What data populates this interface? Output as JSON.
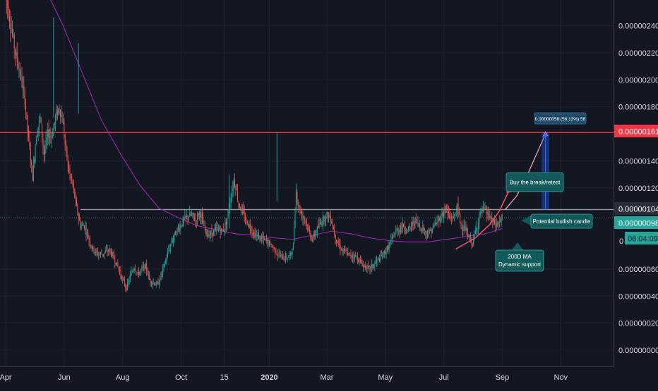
{
  "chart_data": {
    "type": "candlestick",
    "y_axis": {
      "ticks": [
        "0.00000240",
        "0.00000220",
        "0.00000200",
        "0.00000180",
        "0.00000140",
        "0.00000120",
        "0.00000060",
        "0.00000040",
        "0.00000020",
        "0.00000000"
      ],
      "tick_values": [
        2.4,
        2.2,
        2.0,
        1.8,
        1.4,
        1.2,
        0.6,
        0.4,
        0.2,
        0.0
      ],
      "unit_scale": "1e-6",
      "range": [
        -0.05,
        2.57
      ]
    },
    "x_axis": {
      "ticks": [
        "Apr",
        "Jun",
        "Aug",
        "Oct",
        "15",
        "2020",
        "Mar",
        "May",
        "Jul",
        "Sep",
        "Nov"
      ],
      "tick_positions": [
        0,
        61,
        122,
        183,
        228,
        275,
        335,
        396,
        457,
        518,
        579
      ]
    },
    "horizontal_levels": [
      {
        "value": 1.61,
        "label": "0.00000161",
        "color": "#f23645"
      },
      {
        "value": 1.04,
        "label": "0.00000104",
        "color": "#b2b5be"
      },
      {
        "value": 0.98,
        "label": "0.00000098",
        "color": "#26a69a"
      }
    ],
    "countdown_label": "06:04:09",
    "partial_axis_label": "0",
    "annotations": {
      "measure": "0.00000058 (56.13%) 58",
      "buy": "Buy the break/retest",
      "bullish": "Potential bullish candle",
      "ma_line1": "200D MA",
      "ma_line2": "Dynamic support"
    },
    "price_path": [
      [
        0,
        2.62
      ],
      [
        3,
        2.5
      ],
      [
        6,
        2.38
      ],
      [
        10,
        2.2
      ],
      [
        15,
        2.05
      ],
      [
        20,
        1.85
      ],
      [
        24,
        1.55
      ],
      [
        28,
        1.28
      ],
      [
        32,
        1.6
      ],
      [
        36,
        1.72
      ],
      [
        40,
        1.45
      ],
      [
        44,
        1.6
      ],
      [
        48,
        1.58
      ],
      [
        52,
        1.72
      ],
      [
        56,
        1.8
      ],
      [
        60,
        1.67
      ],
      [
        62,
        1.52
      ],
      [
        66,
        1.32
      ],
      [
        70,
        1.22
      ],
      [
        74,
        1.05
      ],
      [
        78,
        0.92
      ],
      [
        82,
        0.92
      ],
      [
        86,
        0.84
      ],
      [
        90,
        0.76
      ],
      [
        94,
        0.72
      ],
      [
        98,
        0.71
      ],
      [
        103,
        0.72
      ],
      [
        108,
        0.74
      ],
      [
        113,
        0.68
      ],
      [
        118,
        0.6
      ],
      [
        122,
        0.52
      ],
      [
        126,
        0.46
      ],
      [
        130,
        0.55
      ],
      [
        134,
        0.62
      ],
      [
        138,
        0.56
      ],
      [
        142,
        0.6
      ],
      [
        146,
        0.62
      ],
      [
        150,
        0.52
      ],
      [
        154,
        0.5
      ],
      [
        158,
        0.48
      ],
      [
        162,
        0.55
      ],
      [
        166,
        0.64
      ],
      [
        170,
        0.74
      ],
      [
        174,
        0.82
      ],
      [
        178,
        0.88
      ],
      [
        182,
        0.92
      ],
      [
        186,
        0.96
      ],
      [
        190,
        0.99
      ],
      [
        194,
        1.0
      ],
      [
        198,
        0.96
      ],
      [
        202,
        1.02
      ],
      [
        204,
        0.99
      ],
      [
        206,
        0.92
      ],
      [
        210,
        0.86
      ],
      [
        214,
        0.86
      ],
      [
        218,
        0.88
      ],
      [
        222,
        0.9
      ],
      [
        226,
        0.88
      ],
      [
        230,
        0.94
      ],
      [
        234,
        1.1
      ],
      [
        238,
        1.25
      ],
      [
        240,
        1.22
      ],
      [
        243,
        1.08
      ],
      [
        247,
        1.02
      ],
      [
        251,
        0.95
      ],
      [
        255,
        0.92
      ],
      [
        259,
        0.86
      ],
      [
        263,
        0.84
      ],
      [
        268,
        0.82
      ],
      [
        273,
        0.8
      ],
      [
        279,
        0.76
      ],
      [
        285,
        0.7
      ],
      [
        291,
        0.68
      ],
      [
        297,
        0.7
      ],
      [
        300,
        0.78
      ],
      [
        302,
        1.06
      ],
      [
        303,
        1.18
      ],
      [
        305,
        1.08
      ],
      [
        309,
        1.0
      ],
      [
        313,
        0.96
      ],
      [
        316,
        0.88
      ],
      [
        320,
        0.82
      ],
      [
        324,
        0.88
      ],
      [
        328,
        0.94
      ],
      [
        332,
        0.98
      ],
      [
        336,
        1.0
      ],
      [
        340,
        0.96
      ],
      [
        343,
        0.86
      ],
      [
        347,
        0.78
      ],
      [
        351,
        0.74
      ],
      [
        355,
        0.72
      ],
      [
        359,
        0.7
      ],
      [
        363,
        0.7
      ],
      [
        367,
        0.68
      ],
      [
        371,
        0.64
      ],
      [
        375,
        0.62
      ],
      [
        379,
        0.6
      ],
      [
        383,
        0.62
      ],
      [
        387,
        0.66
      ],
      [
        391,
        0.68
      ],
      [
        395,
        0.72
      ],
      [
        399,
        0.76
      ],
      [
        403,
        0.82
      ],
      [
        407,
        0.88
      ],
      [
        411,
        0.9
      ],
      [
        415,
        0.92
      ],
      [
        419,
        0.88
      ],
      [
        423,
        0.92
      ],
      [
        427,
        0.96
      ],
      [
        431,
        0.92
      ],
      [
        435,
        0.9
      ],
      [
        439,
        0.86
      ],
      [
        443,
        0.88
      ],
      [
        447,
        0.92
      ],
      [
        451,
        0.96
      ],
      [
        455,
        1.0
      ],
      [
        459,
        1.05
      ],
      [
        463,
        0.98
      ],
      [
        467,
        0.98
      ],
      [
        471,
        1.06
      ],
      [
        475,
        0.92
      ],
      [
        479,
        0.9
      ],
      [
        483,
        0.82
      ],
      [
        487,
        0.8
      ],
      [
        491,
        0.9
      ],
      [
        495,
        1.02
      ],
      [
        499,
        1.04
      ],
      [
        503,
        1.0
      ],
      [
        507,
        0.96
      ],
      [
        511,
        0.92
      ],
      [
        515,
        0.95
      ],
      [
        518,
        0.98
      ]
    ],
    "ma_path": [
      [
        45,
        2.62
      ],
      [
        60,
        2.4
      ],
      [
        80,
        2.05
      ],
      [
        100,
        1.7
      ],
      [
        120,
        1.45
      ],
      [
        140,
        1.22
      ],
      [
        160,
        1.05
      ],
      [
        180,
        0.98
      ],
      [
        200,
        0.92
      ],
      [
        220,
        0.89
      ],
      [
        240,
        0.86
      ],
      [
        260,
        0.85
      ],
      [
        280,
        0.83
      ],
      [
        300,
        0.82
      ],
      [
        320,
        0.85
      ],
      [
        340,
        0.88
      ],
      [
        360,
        0.86
      ],
      [
        380,
        0.83
      ],
      [
        400,
        0.81
      ],
      [
        420,
        0.8
      ],
      [
        440,
        0.8
      ],
      [
        460,
        0.82
      ],
      [
        480,
        0.84
      ],
      [
        500,
        0.86
      ],
      [
        518,
        0.9
      ]
    ],
    "projection_path": [
      [
        470,
        0.75
      ],
      [
        490,
        0.83
      ],
      [
        505,
        0.93
      ],
      [
        515,
        1.03
      ],
      [
        521,
        1.12
      ],
      [
        525,
        1.18
      ]
    ],
    "projection_path2": [
      [
        521,
        1.04
      ],
      [
        533,
        1.14
      ],
      [
        545,
        1.31
      ],
      [
        555,
        1.47
      ],
      [
        563,
        1.6
      ]
    ],
    "measure_box": {
      "x_start": 559,
      "x_end": 567,
      "y_low": 1.04,
      "y_high": 1.61
    }
  }
}
